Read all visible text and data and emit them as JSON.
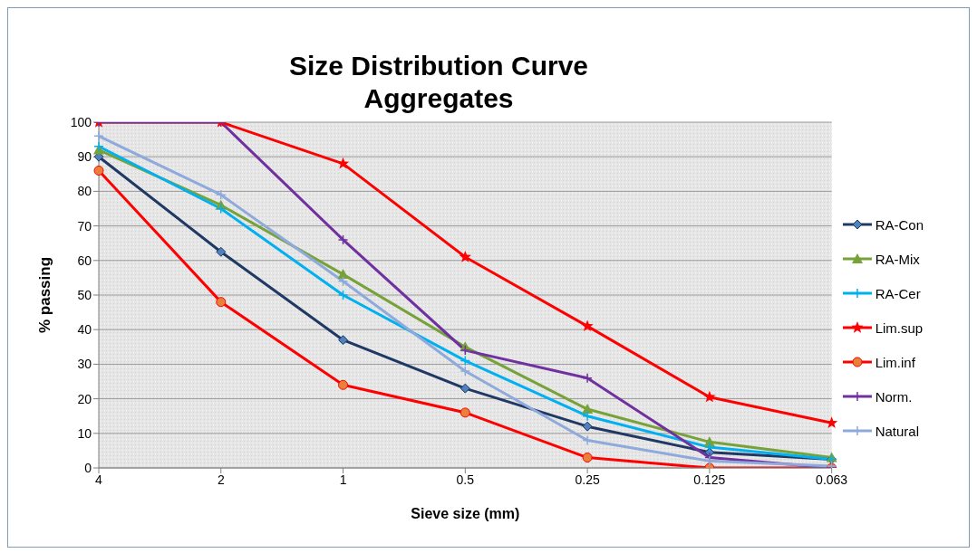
{
  "chart_data": {
    "type": "line",
    "title": "Size Distribution Curve\nAggregates",
    "xlabel": "Sieve size (mm)",
    "ylabel": "% passing",
    "categories": [
      "4",
      "2",
      "1",
      "0.5",
      "0.25",
      "0.125",
      "0.063"
    ],
    "ylim": [
      0,
      100
    ],
    "yticks": [
      0,
      10,
      20,
      30,
      40,
      50,
      60,
      70,
      80,
      90,
      100
    ],
    "grid": "y",
    "legend": "right",
    "series": [
      {
        "name": "RA-Con",
        "color": "#1f3864",
        "marker": "diamond",
        "values": [
          90,
          62.5,
          37,
          23,
          12,
          4.5,
          2.5
        ]
      },
      {
        "name": "RA-Mix",
        "color": "#77a23a",
        "marker": "triangle",
        "values": [
          92,
          76,
          56,
          35,
          17,
          7.5,
          3
        ]
      },
      {
        "name": "RA-Cer",
        "color": "#00b0f0",
        "marker": "cross",
        "values": [
          93,
          75,
          50,
          31,
          15,
          6,
          2.5
        ]
      },
      {
        "name": "Lim.sup",
        "color": "#ff0000",
        "marker": "star",
        "values": [
          100,
          100,
          88,
          61,
          41,
          20.5,
          13
        ]
      },
      {
        "name": "Lim.inf",
        "color": "#ff0000",
        "marker": "circle",
        "values": [
          86,
          48,
          24,
          16,
          3,
          0,
          0
        ]
      },
      {
        "name": "Norm.",
        "color": "#7030a0",
        "marker": "cross",
        "values": [
          100,
          100,
          66,
          34,
          26,
          3,
          0
        ]
      },
      {
        "name": "Natural",
        "color": "#8ea9db",
        "marker": "cross",
        "values": [
          96,
          79,
          54,
          28,
          8,
          2,
          0.5
        ]
      }
    ]
  }
}
